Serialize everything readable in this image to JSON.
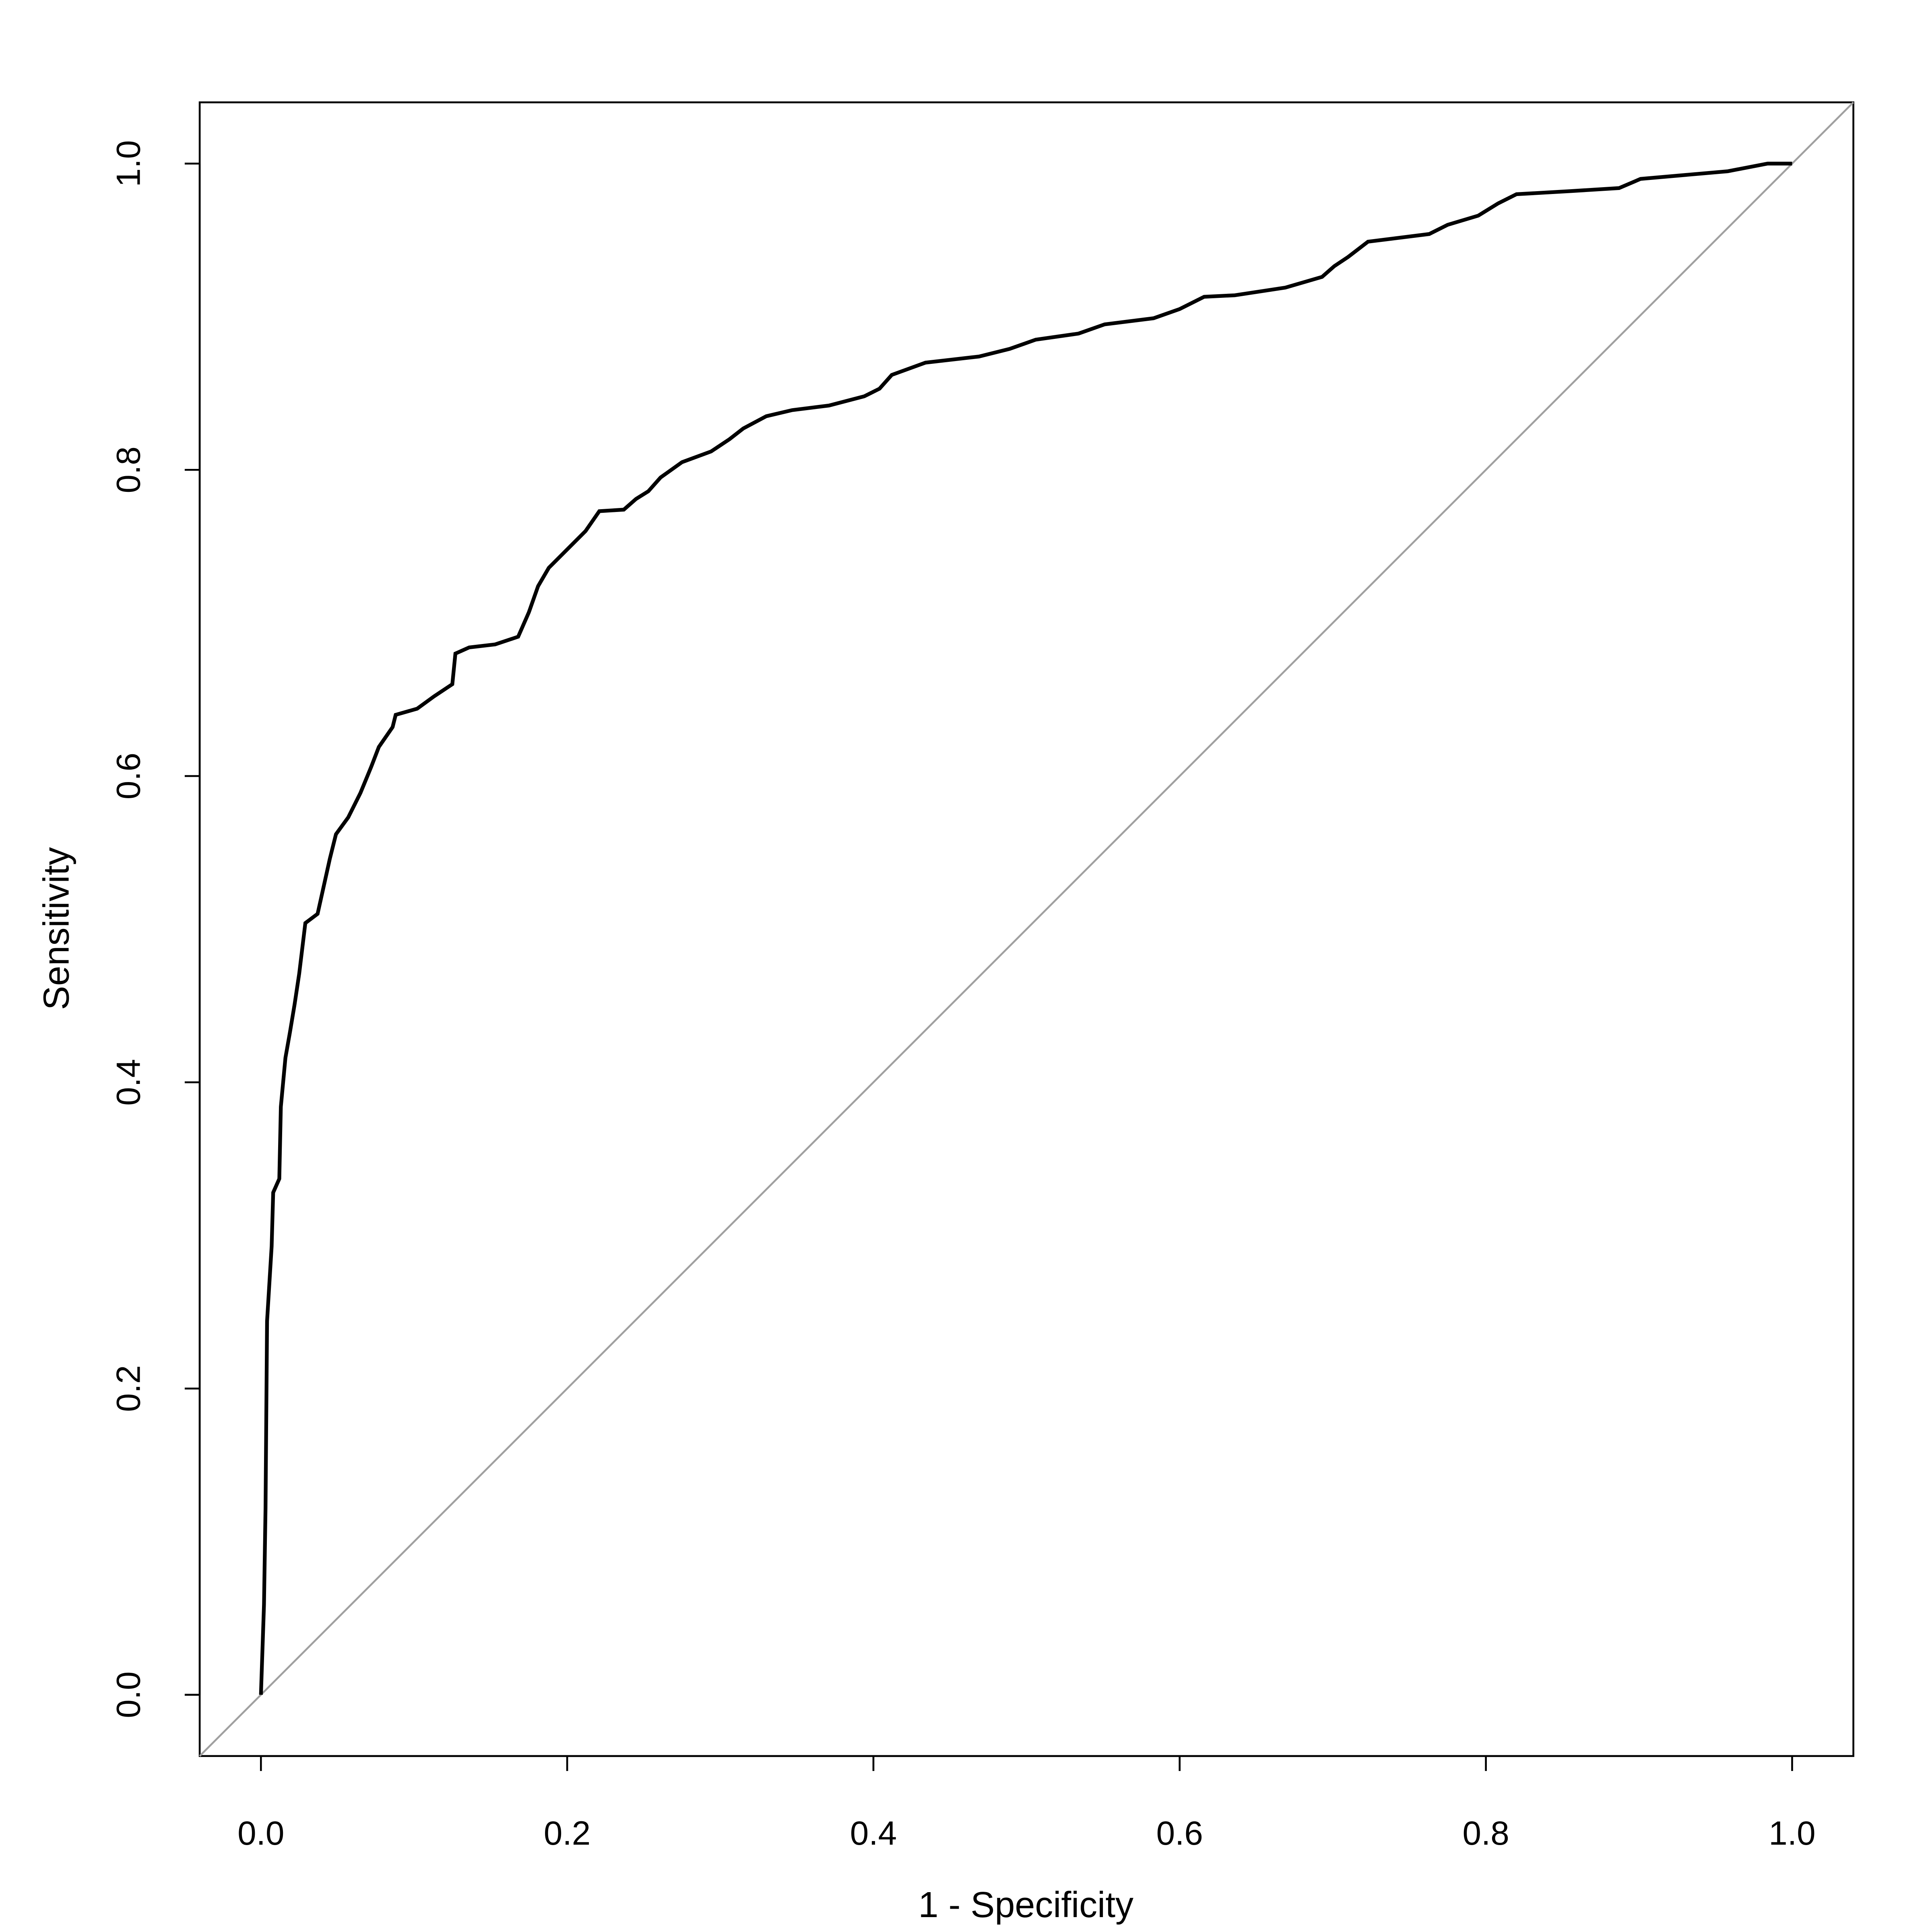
{
  "chart_data": {
    "type": "line",
    "x_label": "1 - Specificity",
    "y_label": "Sensitivity",
    "xlim": [
      -0.04,
      1.04
    ],
    "ylim": [
      -0.04,
      1.04
    ],
    "xticks": [
      {
        "value": 0,
        "label": "0.0"
      },
      0.2,
      0.4,
      0.6,
      0.8,
      {
        "value": 1,
        "label": "1.0"
      }
    ],
    "yticks": [
      {
        "value": 0,
        "label": "0.0"
      },
      0.2,
      0.4,
      0.6,
      0.8,
      {
        "value": 1,
        "label": "1.0"
      }
    ],
    "reference_line_color": "#a0a0a0",
    "series": [
      {
        "color": "#000000",
        "x": [
          0,
          0.002,
          0.003,
          0.004,
          0.007,
          0.008,
          0.012,
          0.013,
          0.016,
          0.019,
          0.022,
          0.025,
          0.029,
          0.037,
          0.041,
          0.045,
          0.049,
          0.057,
          0.065,
          0.072,
          0.077,
          0.086,
          0.088,
          0.102,
          0.113,
          0.125,
          0.127,
          0.136,
          0.153,
          0.168,
          0.175,
          0.181,
          0.188,
          0.2,
          0.212,
          0.221,
          0.237,
          0.245,
          0.253,
          0.261,
          0.275,
          0.294,
          0.306,
          0.315,
          0.33,
          0.347,
          0.371,
          0.394,
          0.404,
          0.412,
          0.434,
          0.469,
          0.489,
          0.506,
          0.534,
          0.551,
          0.583,
          0.6,
          0.616,
          0.636,
          0.669,
          0.693,
          0.701,
          0.71,
          0.723,
          0.763,
          0.775,
          0.795,
          0.808,
          0.82,
          0.855,
          0.887,
          0.901,
          0.958,
          0.984,
          1
        ],
        "values": [
          0,
          0.059,
          0.122,
          0.244,
          0.293,
          0.328,
          0.337,
          0.384,
          0.416,
          0.433,
          0.451,
          0.471,
          0.504,
          0.51,
          0.528,
          0.546,
          0.562,
          0.573,
          0.589,
          0.606,
          0.619,
          0.632,
          0.64,
          0.644,
          0.652,
          0.66,
          0.68,
          0.684,
          0.686,
          0.691,
          0.707,
          0.724,
          0.736,
          0.748,
          0.76,
          0.773,
          0.774,
          0.781,
          0.786,
          0.795,
          0.805,
          0.812,
          0.82,
          0.827,
          0.835,
          0.839,
          0.842,
          0.848,
          0.853,
          0.862,
          0.87,
          0.874,
          0.879,
          0.885,
          0.889,
          0.895,
          0.899,
          0.905,
          0.913,
          0.914,
          0.919,
          0.926,
          0.933,
          0.939,
          0.949,
          0.954,
          0.96,
          0.966,
          0.974,
          0.98,
          0.982,
          0.984,
          0.99,
          0.995,
          1,
          1
        ]
      }
    ]
  }
}
